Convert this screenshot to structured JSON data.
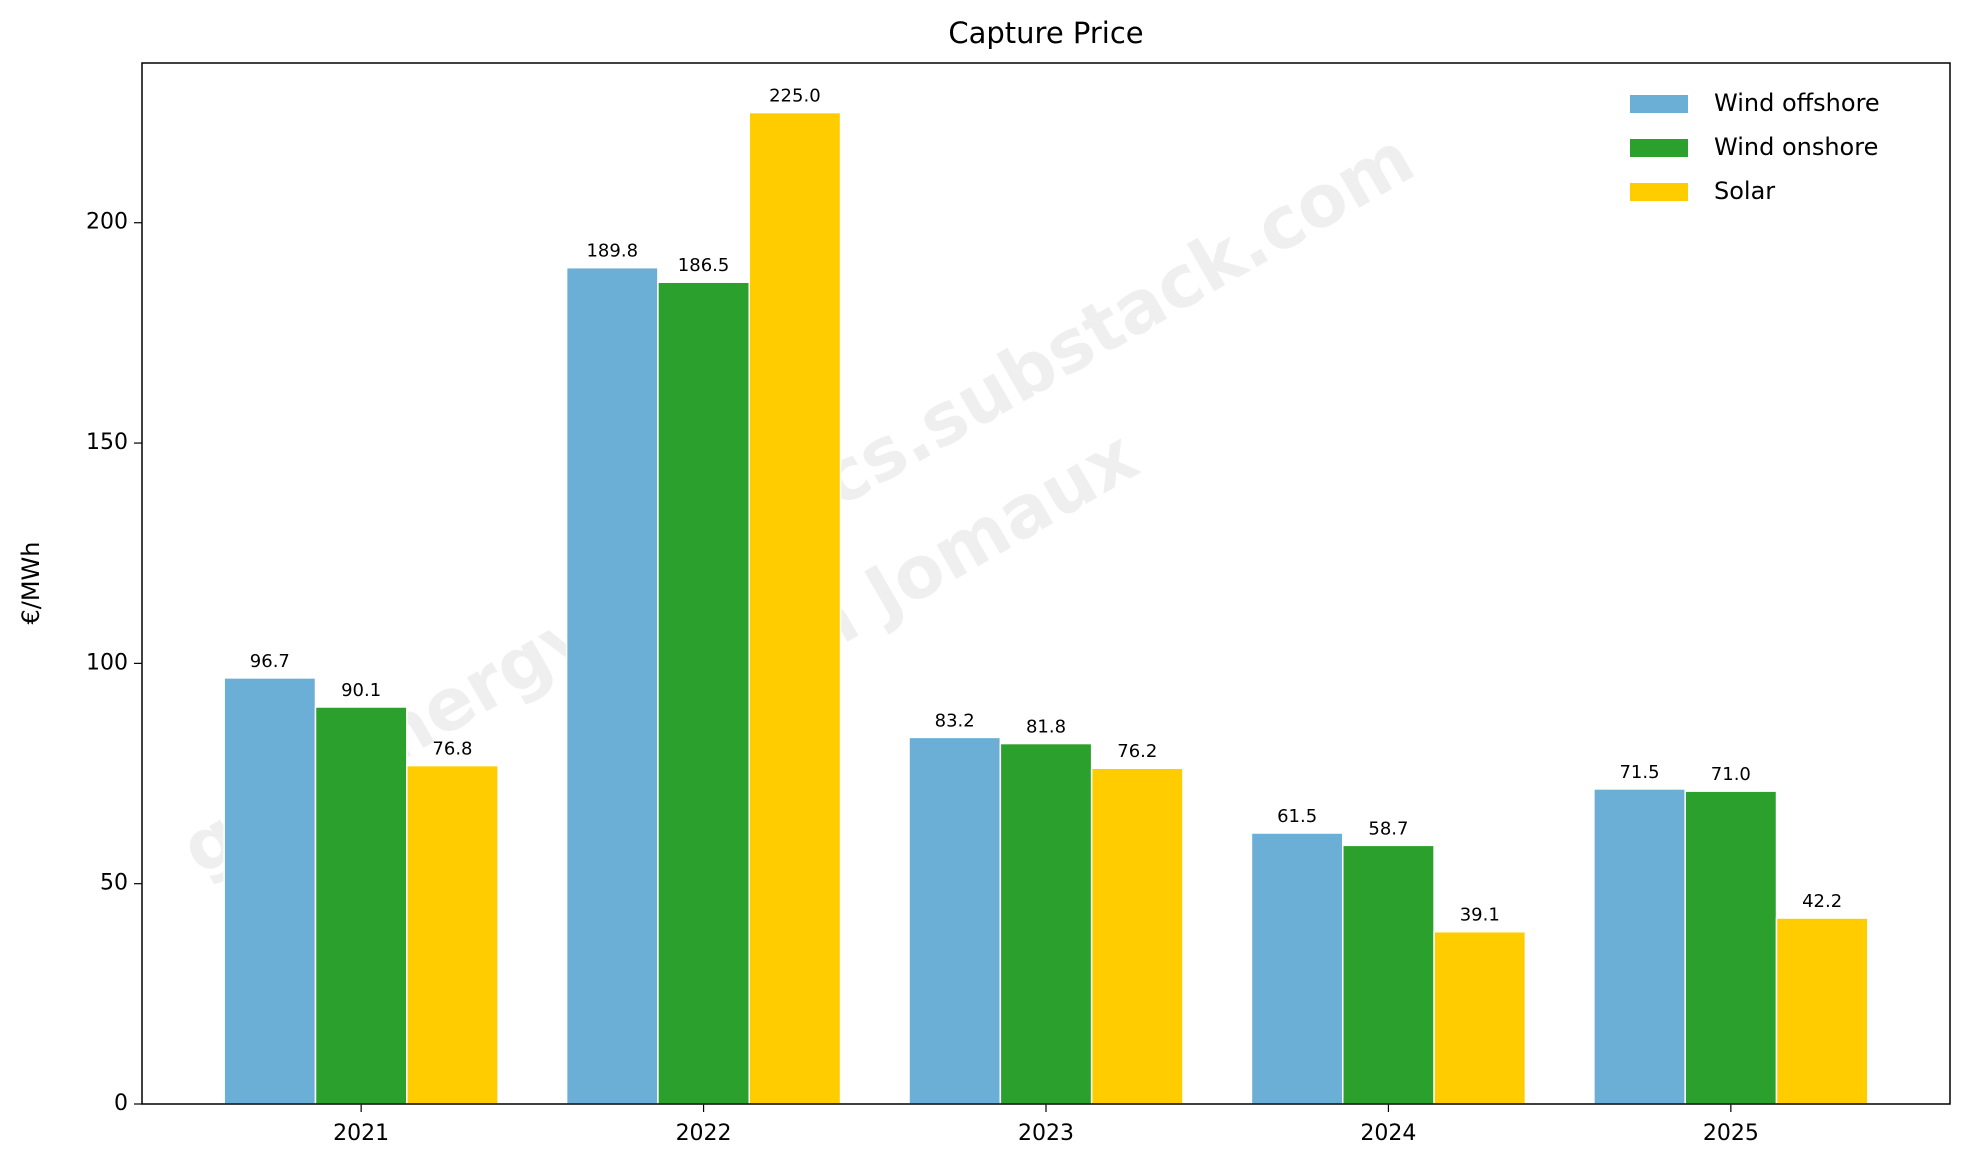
{
  "chart_data": {
    "type": "bar",
    "title": "Capture Price",
    "y_label": "€/MWh",
    "categories": [
      "2021",
      "2022",
      "2023",
      "2024",
      "2025"
    ],
    "series": [
      {
        "name": "Wind offshore",
        "color": "#6baed6",
        "values": [
          96.7,
          189.8,
          83.2,
          61.5,
          71.5
        ],
        "value_labels": [
          "96.7",
          "189.8",
          "83.2",
          "61.5",
          "71.5"
        ]
      },
      {
        "name": "Wind onshore",
        "color": "#2ca02c",
        "values": [
          90.1,
          186.5,
          81.8,
          58.7,
          71
        ],
        "value_labels": [
          "90.1",
          "186.5",
          "81.8",
          "58.7",
          "71.0"
        ]
      },
      {
        "name": "Solar",
        "color": "#ffcc00",
        "values": [
          76.8,
          225,
          76.2,
          39.1,
          42.2
        ],
        "value_labels": [
          "76.8",
          "225.0",
          "76.2",
          "39.1",
          "42.2"
        ]
      }
    ],
    "ylim": [
      0,
      236.25
    ],
    "yticks": [
      0,
      50,
      100,
      150,
      200
    ],
    "grid": false,
    "legend": "upper right",
    "watermark": [
      "gemenergyanalytics.substack.com",
      "Julien Jomaux"
    ]
  }
}
